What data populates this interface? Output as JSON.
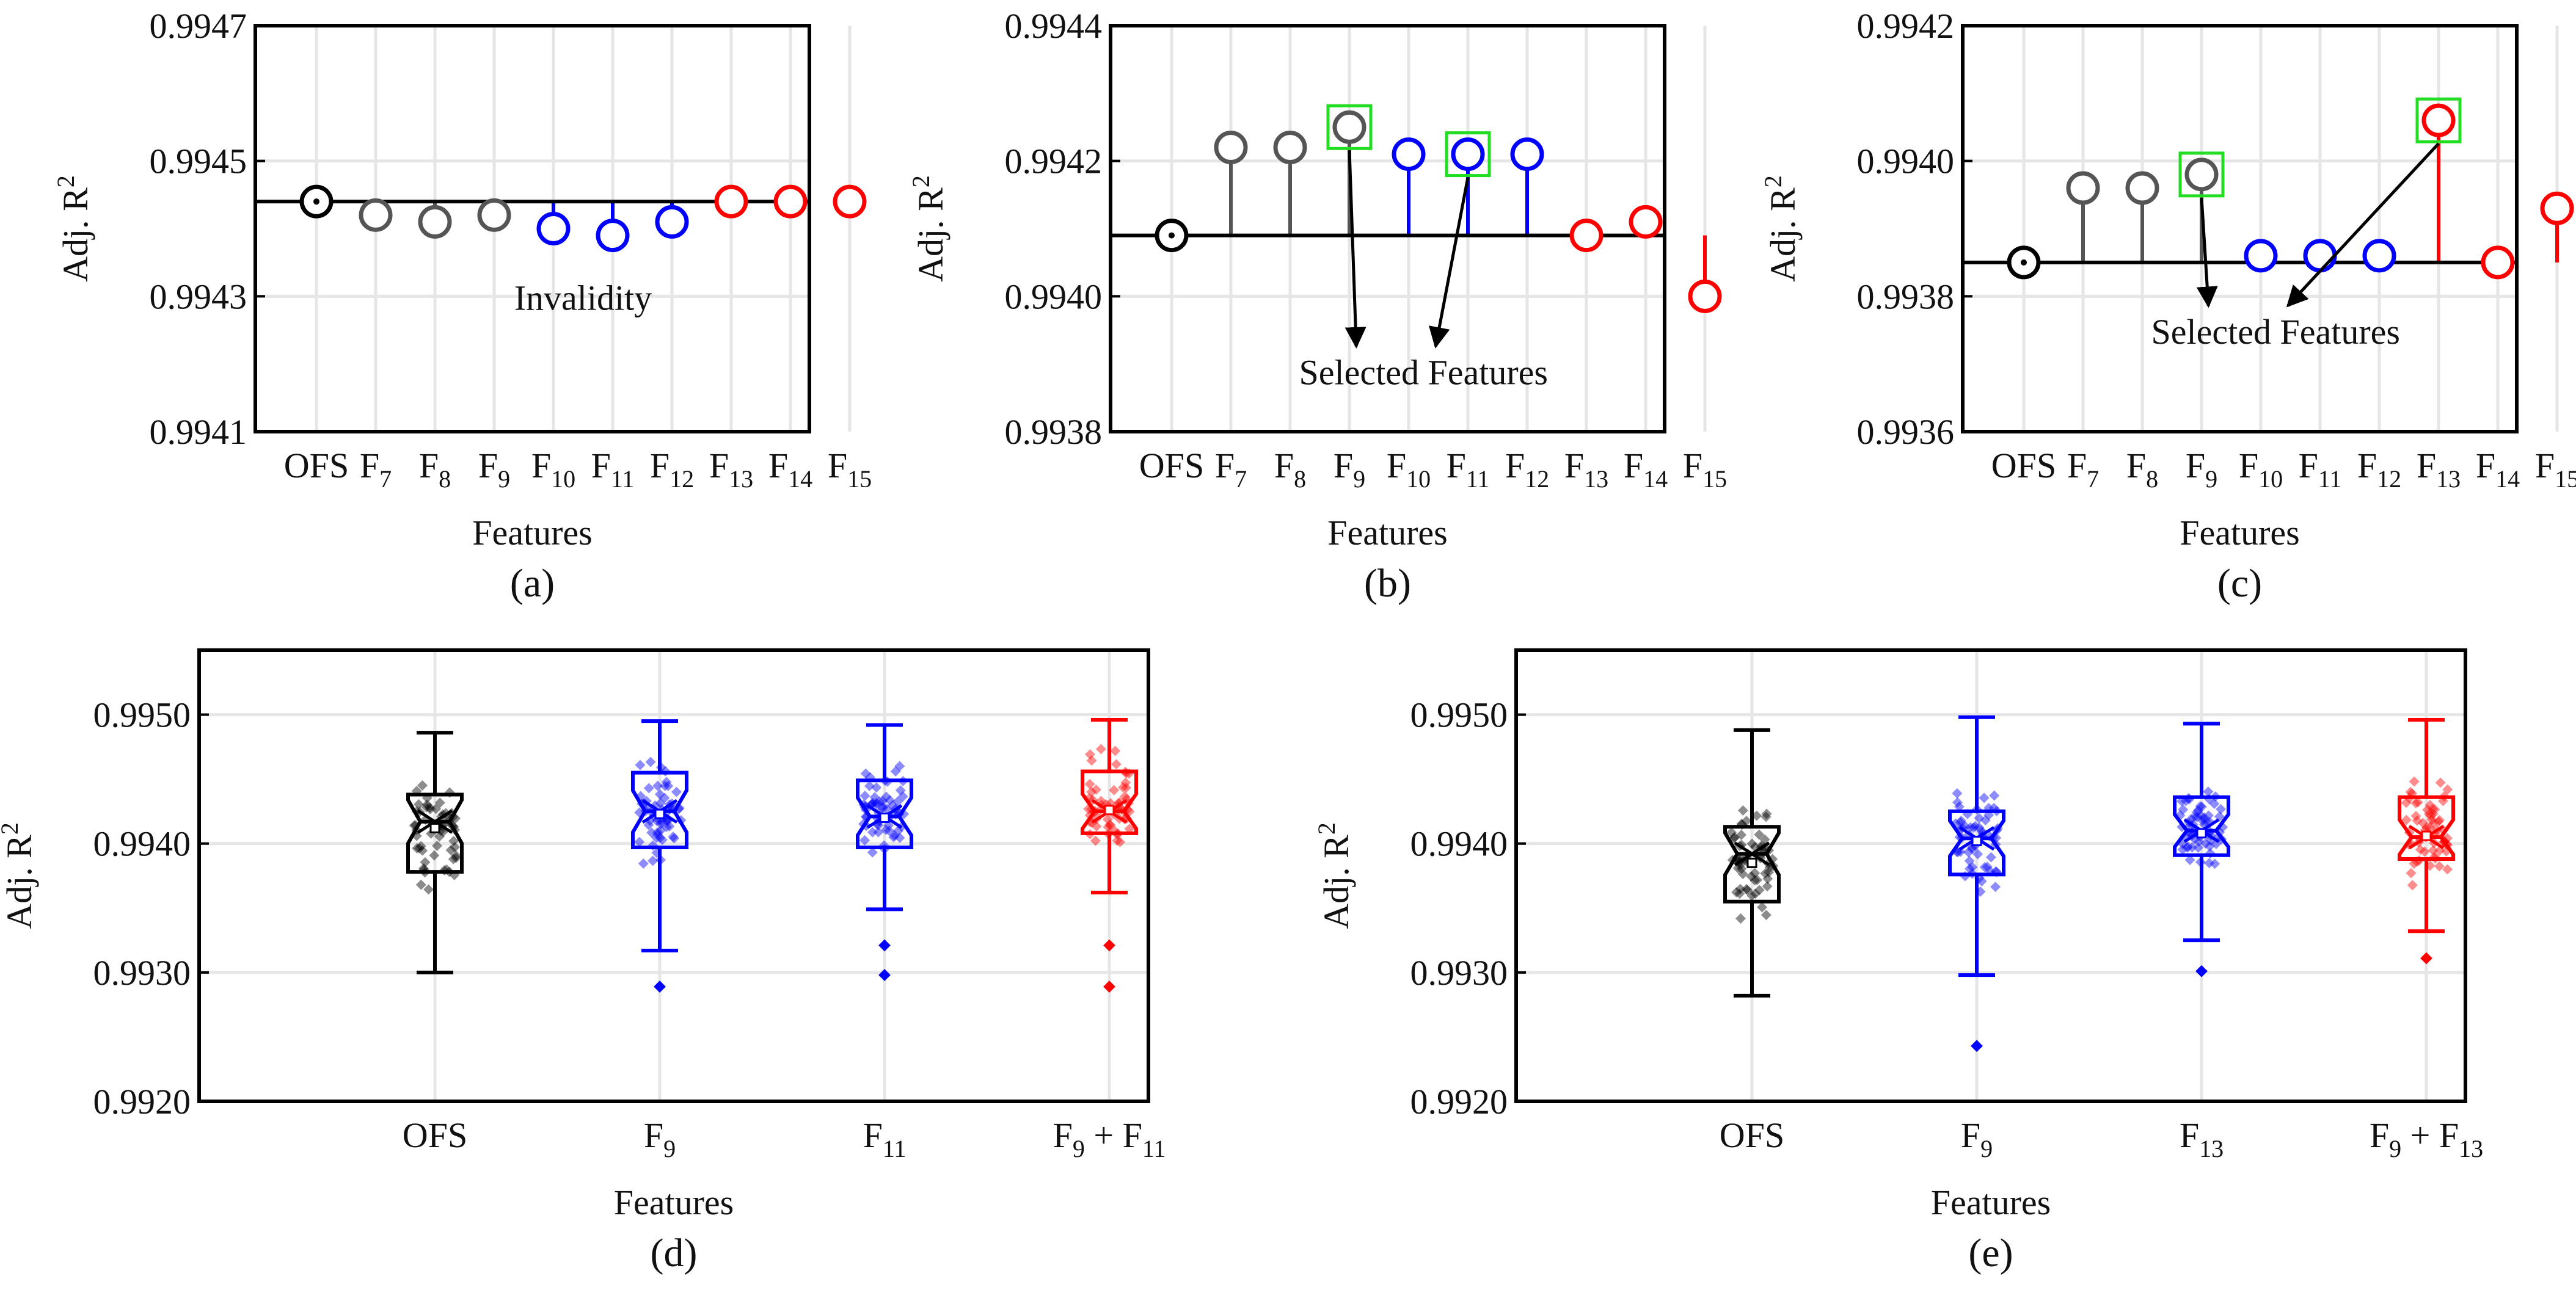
{
  "chart_data": [
    {
      "panel": "a",
      "type": "scatter",
      "style": "lollipop",
      "label": "(a)",
      "xlabel": "Features",
      "ylabel": "Adj. R",
      "ylabel_sup": "2",
      "ylim": [
        0.9941,
        0.9947
      ],
      "yticks": [
        "0.9941",
        "0.9943",
        "0.9945",
        "0.9947"
      ],
      "baseline": 0.99444,
      "categories": [
        {
          "base": "OFS",
          "sub": ""
        },
        {
          "base": "F",
          "sub": "7"
        },
        {
          "base": "F",
          "sub": "8"
        },
        {
          "base": "F",
          "sub": "9"
        },
        {
          "base": "F",
          "sub": "10"
        },
        {
          "base": "F",
          "sub": "11"
        },
        {
          "base": "F",
          "sub": "12"
        },
        {
          "base": "F",
          "sub": "13"
        },
        {
          "base": "F",
          "sub": "14"
        },
        {
          "base": "F",
          "sub": "15"
        }
      ],
      "values": [
        0.99444,
        0.99442,
        0.99441,
        0.99442,
        0.9944,
        0.99439,
        0.99441,
        0.99444,
        0.99444,
        0.99444
      ],
      "colors": [
        "#000000",
        "#555555",
        "#555555",
        "#555555",
        "#0000ff",
        "#0000ff",
        "#0000ff",
        "#ff0000",
        "#ff0000",
        "#ff0000"
      ],
      "highlighted": [],
      "annotation": {
        "text": "Invalidity",
        "x_index": 4.5,
        "y": 0.99428,
        "arrows_to": []
      }
    },
    {
      "panel": "b",
      "type": "scatter",
      "style": "lollipop",
      "label": "(b)",
      "xlabel": "Features",
      "ylabel": "Adj. R",
      "ylabel_sup": "2",
      "ylim": [
        0.9938,
        0.9944
      ],
      "yticks": [
        "0.9938",
        "0.9940",
        "0.9942",
        "0.9944"
      ],
      "baseline": 0.99409,
      "categories": [
        {
          "base": "OFS",
          "sub": ""
        },
        {
          "base": "F",
          "sub": "7"
        },
        {
          "base": "F",
          "sub": "8"
        },
        {
          "base": "F",
          "sub": "9"
        },
        {
          "base": "F",
          "sub": "10"
        },
        {
          "base": "F",
          "sub": "11"
        },
        {
          "base": "F",
          "sub": "12"
        },
        {
          "base": "F",
          "sub": "13"
        },
        {
          "base": "F",
          "sub": "14"
        },
        {
          "base": "F",
          "sub": "15"
        }
      ],
      "values": [
        0.99409,
        0.99422,
        0.99422,
        0.99425,
        0.99421,
        0.99421,
        0.99421,
        0.99409,
        0.99411,
        0.994
      ],
      "colors": [
        "#000000",
        "#555555",
        "#555555",
        "#555555",
        "#0000ff",
        "#0000ff",
        "#0000ff",
        "#ff0000",
        "#ff0000",
        "#ff0000"
      ],
      "highlighted": [
        3,
        5
      ],
      "annotation": {
        "text": "Selected Features",
        "x_index": 4.25,
        "y": 0.99387,
        "arrows_to": [
          3,
          5
        ]
      }
    },
    {
      "panel": "c",
      "type": "scatter",
      "style": "lollipop",
      "label": "(c)",
      "xlabel": "Features",
      "ylabel": "Adj. R",
      "ylabel_sup": "2",
      "ylim": [
        0.9936,
        0.9942
      ],
      "yticks": [
        "0.9936",
        "0.9938",
        "0.9940",
        "0.9942"
      ],
      "baseline": 0.99385,
      "categories": [
        {
          "base": "OFS",
          "sub": ""
        },
        {
          "base": "F",
          "sub": "7"
        },
        {
          "base": "F",
          "sub": "8"
        },
        {
          "base": "F",
          "sub": "9"
        },
        {
          "base": "F",
          "sub": "10"
        },
        {
          "base": "F",
          "sub": "11"
        },
        {
          "base": "F",
          "sub": "12"
        },
        {
          "base": "F",
          "sub": "13"
        },
        {
          "base": "F",
          "sub": "14"
        },
        {
          "base": "F",
          "sub": "15"
        }
      ],
      "values": [
        0.99385,
        0.99396,
        0.99396,
        0.99398,
        0.99386,
        0.99386,
        0.99386,
        0.99406,
        0.99385,
        0.99393
      ],
      "colors": [
        "#000000",
        "#555555",
        "#555555",
        "#555555",
        "#0000ff",
        "#0000ff",
        "#0000ff",
        "#ff0000",
        "#ff0000",
        "#ff0000"
      ],
      "highlighted": [
        3,
        7
      ],
      "annotation": {
        "text": "Selected Features",
        "x_index": 4.25,
        "y": 0.99373,
        "arrows_to": [
          3,
          7
        ]
      }
    },
    {
      "panel": "d",
      "type": "box",
      "label": "(d)",
      "xlabel": "Features",
      "ylabel": "Adj. R",
      "ylabel_sup": "2",
      "ylim": [
        0.992,
        0.9955
      ],
      "yticks": [
        "0.9920",
        "0.9930",
        "0.9940",
        "0.9950"
      ],
      "categories": [
        {
          "base": "OFS",
          "sub": ""
        },
        {
          "base": "F",
          "sub": "9"
        },
        {
          "base": "F",
          "sub": "11"
        },
        {
          "base": "F",
          "sub": "9",
          "plus": "F",
          "sub2": "11"
        }
      ],
      "colors": [
        "#000000",
        "#0000ff",
        "#0000ff",
        "#ff0000"
      ],
      "series": [
        {
          "min": 0.993,
          "q1": 0.99378,
          "median": 0.99417,
          "mean": 0.99412,
          "q3": 0.99438,
          "max": 0.99486,
          "outliers": []
        },
        {
          "min": 0.99317,
          "q1": 0.99397,
          "median": 0.99425,
          "mean": 0.99423,
          "q3": 0.99455,
          "max": 0.99495,
          "outliers": [
            0.99289
          ]
        },
        {
          "min": 0.99349,
          "q1": 0.99397,
          "median": 0.99421,
          "mean": 0.9942,
          "q3": 0.99449,
          "max": 0.99492,
          "outliers": [
            0.99321,
            0.99298
          ]
        },
        {
          "min": 0.99362,
          "q1": 0.99408,
          "median": 0.99425,
          "mean": 0.99426,
          "q3": 0.99456,
          "max": 0.99496,
          "outliers": [
            0.99321,
            0.99289
          ]
        }
      ]
    },
    {
      "panel": "e",
      "type": "box",
      "label": "(e)",
      "xlabel": "Features",
      "ylabel": "Adj. R",
      "ylabel_sup": "2",
      "ylim": [
        0.992,
        0.9955
      ],
      "yticks": [
        "0.9920",
        "0.9930",
        "0.9940",
        "0.9950"
      ],
      "categories": [
        {
          "base": "OFS",
          "sub": ""
        },
        {
          "base": "F",
          "sub": "9"
        },
        {
          "base": "F",
          "sub": "13"
        },
        {
          "base": "F",
          "sub": "9",
          "plus": "F",
          "sub2": "13"
        }
      ],
      "colors": [
        "#000000",
        "#0000ff",
        "#0000ff",
        "#ff0000"
      ],
      "series": [
        {
          "min": 0.99282,
          "q1": 0.99355,
          "median": 0.99392,
          "mean": 0.99385,
          "q3": 0.99413,
          "max": 0.99488,
          "outliers": []
        },
        {
          "min": 0.99298,
          "q1": 0.99376,
          "median": 0.99404,
          "mean": 0.99402,
          "q3": 0.99425,
          "max": 0.99498,
          "outliers": [
            0.99243
          ]
        },
        {
          "min": 0.99325,
          "q1": 0.99391,
          "median": 0.9941,
          "mean": 0.99408,
          "q3": 0.99436,
          "max": 0.99493,
          "outliers": [
            0.99301
          ]
        },
        {
          "min": 0.99332,
          "q1": 0.99388,
          "median": 0.99405,
          "mean": 0.99406,
          "q3": 0.99436,
          "max": 0.99496,
          "outliers": [
            0.99311
          ]
        }
      ]
    }
  ]
}
